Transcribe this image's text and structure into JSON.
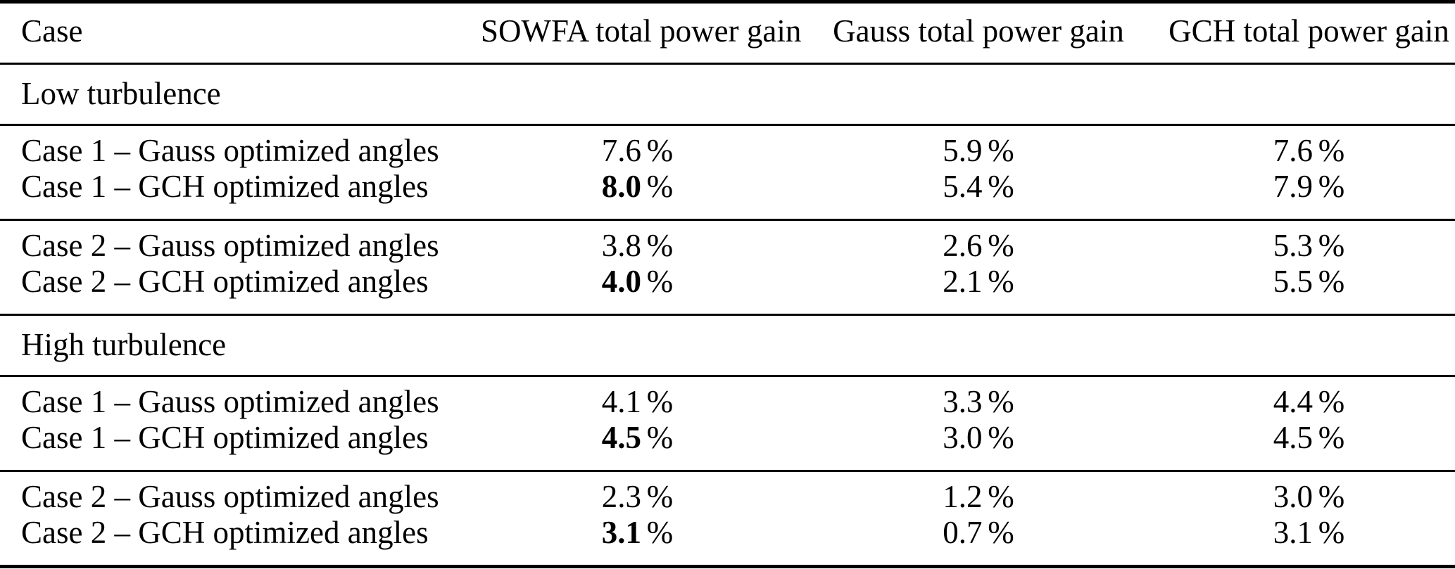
{
  "table": {
    "percent_sign": "%",
    "columns": [
      "Case",
      "SOWFA total power gain",
      "Gauss total power gain",
      "GCH total power gain"
    ],
    "sections": [
      {
        "title": "Low turbulence",
        "groups": [
          {
            "rows": [
              {
                "label": "Case 1 – Gauss optimized angles",
                "sowfa": "7.6",
                "gauss": "5.9",
                "gch": "7.6",
                "sowfa_bold": false
              },
              {
                "label": "Case 1 – GCH optimized angles",
                "sowfa": "8.0",
                "gauss": "5.4",
                "gch": "7.9",
                "sowfa_bold": true
              }
            ]
          },
          {
            "rows": [
              {
                "label": "Case 2 – Gauss optimized angles",
                "sowfa": "3.8",
                "gauss": "2.6",
                "gch": "5.3",
                "sowfa_bold": false
              },
              {
                "label": "Case 2 – GCH optimized angles",
                "sowfa": "4.0",
                "gauss": "2.1",
                "gch": "5.5",
                "sowfa_bold": true
              }
            ]
          }
        ]
      },
      {
        "title": "High turbulence",
        "groups": [
          {
            "rows": [
              {
                "label": "Case 1 – Gauss optimized angles",
                "sowfa": "4.1",
                "gauss": "3.3",
                "gch": "4.4",
                "sowfa_bold": false
              },
              {
                "label": "Case 1 – GCH optimized angles",
                "sowfa": "4.5",
                "gauss": "3.0",
                "gch": "4.5",
                "sowfa_bold": true
              }
            ]
          },
          {
            "rows": [
              {
                "label": "Case 2 – Gauss optimized angles",
                "sowfa": "2.3",
                "gauss": "1.2",
                "gch": "3.0",
                "sowfa_bold": false
              },
              {
                "label": "Case 2 – GCH optimized angles",
                "sowfa": "3.1",
                "gauss": "0.7",
                "gch": "3.1",
                "sowfa_bold": true
              }
            ]
          }
        ]
      }
    ]
  }
}
